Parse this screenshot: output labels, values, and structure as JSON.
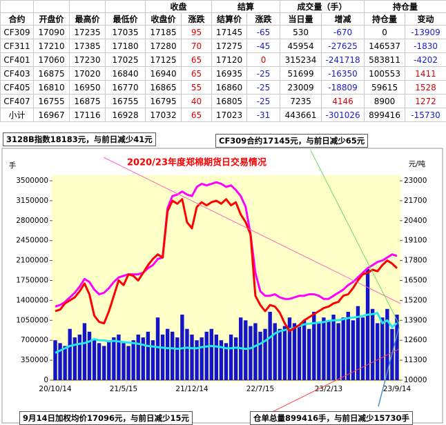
{
  "table": {
    "group_headers": [
      "收盘",
      "结算",
      "成交量（手）",
      "持仓量"
    ],
    "columns": [
      "合约",
      "开盘价",
      "最高价",
      "最低价",
      "收盘价",
      "涨跌",
      "结算价",
      "涨跌",
      "当日量",
      "增减",
      "持仓量",
      "变动"
    ],
    "rows": [
      [
        "CF309",
        17090,
        17235,
        17035,
        17185,
        95,
        17145,
        -65,
        530,
        -670,
        0,
        -13909
      ],
      [
        "CF311",
        17210,
        17385,
        17180,
        17280,
        70,
        17275,
        -45,
        45954,
        -27625,
        146537,
        -1830
      ],
      [
        "CF401",
        17060,
        17230,
        17025,
        17125,
        65,
        17120,
        0,
        315234,
        -241718,
        583811,
        -4202
      ],
      [
        "CF403",
        16875,
        17020,
        16840,
        16940,
        65,
        16935,
        -25,
        51699,
        -16350,
        100553,
        1411
      ],
      [
        "CF405",
        16810,
        16950,
        16770,
        16865,
        55,
        16860,
        -25,
        23009,
        -18809,
        59615,
        1528
      ],
      [
        "CF407",
        16755,
        16875,
        16755,
        16795,
        40,
        16805,
        -25,
        7235,
        4146,
        8900,
        1272
      ],
      [
        "小计",
        16967,
        17116,
        16928,
        17032,
        65,
        17023,
        -31,
        443661,
        -301026,
        899416,
        -15730
      ]
    ]
  },
  "notes": {
    "index_price": "3128B指数18183元，与前日减少41元",
    "contract_price": "CF309合约17145元，与前日减少65元",
    "weighted_price": "9月14日加权均价17096元，与前日减少15元",
    "warehouse": "仓单总量899416手，与前日减少15730手"
  },
  "chart_data": {
    "type": "combo",
    "title": "2020/23年度郑棉期货日交易情况",
    "y_label": "手",
    "y2_label": "元/吨",
    "categories": [
      "20/10/14",
      null,
      null,
      null,
      null,
      null,
      null,
      null,
      null,
      null,
      null,
      null,
      null,
      null,
      "21/5/15",
      null,
      null,
      null,
      null,
      null,
      null,
      null,
      null,
      null,
      null,
      null,
      null,
      null,
      "21/12/14",
      null,
      null,
      null,
      null,
      null,
      null,
      null,
      null,
      null,
      null,
      null,
      null,
      null,
      "22/7/15",
      null,
      null,
      null,
      null,
      null,
      null,
      null,
      null,
      null,
      null,
      null,
      null,
      null,
      "23/2/13",
      null,
      null,
      null,
      null,
      null,
      null,
      null,
      null,
      null,
      null,
      null,
      null,
      null,
      "23/9/14"
    ],
    "ylim": [
      0,
      3500000
    ],
    "yticks": [
      0,
      350000,
      700000,
      1050000,
      1400000,
      1750000,
      2100000,
      2450000,
      2800000,
      3150000,
      3500000
    ],
    "y2lim": [
      10000,
      23000
    ],
    "y2ticks": [
      10000,
      11300,
      12600,
      13900,
      15200,
      16500,
      17800,
      19100,
      20400,
      21700,
      23000
    ],
    "series": [
      {
        "type": "bar",
        "axis": "y",
        "color": "#1414c8",
        "values": [
          700000,
          650000,
          600000,
          900000,
          750000,
          800000,
          1000000,
          850000,
          700000,
          650000,
          600000,
          700000,
          750000,
          800000,
          650000,
          600000,
          700000,
          800000,
          750000,
          850000,
          700000,
          1100000,
          800000,
          900000,
          850000,
          750000,
          1150000,
          900000,
          800000,
          700000,
          750000,
          850000,
          900000,
          800000,
          700000,
          650000,
          800000,
          750000,
          1100000,
          1050000,
          950000,
          1000000,
          850000,
          900000,
          1200000,
          1000000,
          900000,
          950000,
          1100000,
          1000000,
          950000,
          1050000,
          900000,
          1200000,
          1000000,
          1100000,
          1050000,
          1150000,
          1000000,
          1100000,
          1200000,
          1050000,
          1300000,
          1100000,
          1950000,
          1250000,
          1000000,
          1100000,
          1250000,
          900000,
          1150000
        ]
      },
      {
        "type": "line",
        "axis": "y",
        "color": "#22e8f0",
        "values": [
          480000,
          520000,
          560000,
          600000,
          620000,
          640000,
          650000,
          680000,
          720000,
          700000,
          700000,
          680000,
          690000,
          680000,
          670000,
          660000,
          650000,
          640000,
          620000,
          600000,
          590000,
          580000,
          570000,
          560000,
          560000,
          550000,
          560000,
          570000,
          560000,
          560000,
          580000,
          590000,
          600000,
          590000,
          580000,
          560000,
          560000,
          570000,
          560000,
          550000,
          560000,
          600000,
          640000,
          690000,
          750000,
          820000,
          860000,
          880000,
          900000,
          920000,
          950000,
          980000,
          990000,
          1000000,
          1010000,
          1020000,
          1040000,
          1050000,
          1050000,
          1070000,
          1090000,
          1100000,
          1110000,
          1130000,
          1150000,
          1160000,
          1180000,
          1000000,
          1050000,
          930000,
          1000000
        ]
      },
      {
        "type": "line",
        "axis": "y2",
        "color": "#ff00ff",
        "values": [
          14800,
          14900,
          15100,
          15400,
          15700,
          16100,
          16600,
          16400,
          15900,
          15600,
          15700,
          16000,
          16400,
          16700,
          16800,
          16900,
          16900,
          16900,
          17000,
          17300,
          17500,
          17900,
          18000,
          21200,
          22000,
          22100,
          22300,
          22100,
          22000,
          22600,
          22800,
          22700,
          22800,
          22900,
          22800,
          22600,
          22700,
          22400,
          22000,
          21300,
          19500,
          17000,
          15800,
          15500,
          15500,
          15600,
          15400,
          15300,
          15300,
          15400,
          15500,
          15500,
          15600,
          15600,
          15500,
          15300,
          15300,
          15500,
          15700,
          15900,
          16200,
          16400,
          16700,
          17000,
          17300,
          17500,
          17700,
          17800,
          18000,
          18200,
          18100
        ]
      },
      {
        "type": "line",
        "axis": "y2",
        "color": "#ff0000",
        "values": [
          14500,
          14600,
          15000,
          15200,
          15400,
          15800,
          16300,
          15600,
          14200,
          13800,
          13700,
          14500,
          15500,
          16500,
          16200,
          16900,
          16800,
          16500,
          17000,
          17500,
          17900,
          18200,
          18000,
          21000,
          21700,
          21500,
          21800,
          20300,
          19900,
          21300,
          21600,
          21400,
          21600,
          21700,
          21500,
          21800,
          21400,
          21600,
          20800,
          20300,
          19500,
          15500,
          14900,
          14500,
          14900,
          14800,
          14400,
          13700,
          13200,
          13400,
          13600,
          13900,
          14100,
          14300,
          14500,
          14700,
          14800,
          15000,
          15100,
          15500,
          15600,
          16000,
          16500,
          16900,
          17000,
          17200,
          17100,
          17500,
          17800,
          17600,
          17300
        ]
      }
    ]
  }
}
